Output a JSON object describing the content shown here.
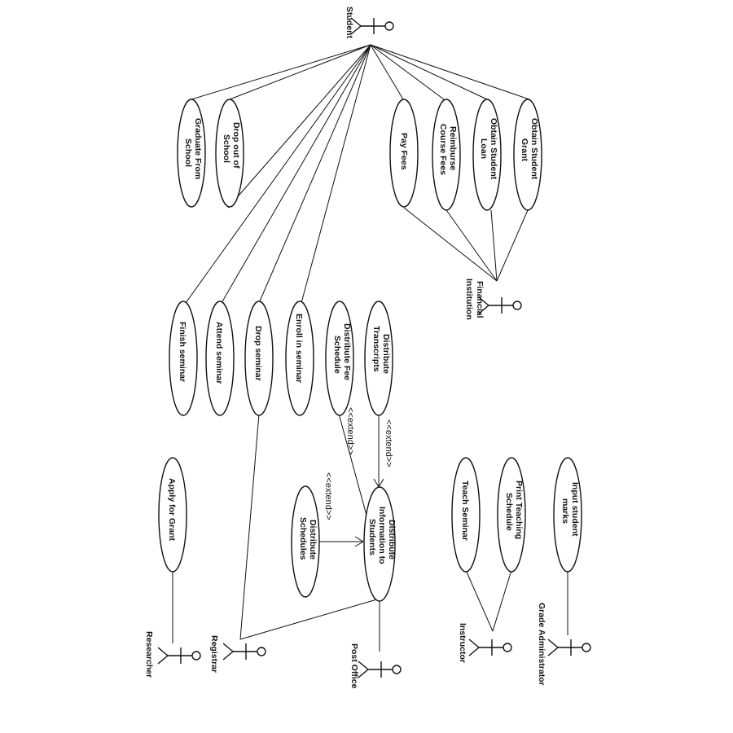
{
  "actors": {
    "student": "Student",
    "financial_institution": [
      "Financial",
      "Institution"
    ],
    "researcher": "Researcher",
    "registrar": "Registrar",
    "post_office": "Post Office",
    "instructor": "Instructor",
    "grade_administrator": "Grade Administrator"
  },
  "use_cases": {
    "graduate": [
      "Graduate From",
      "School"
    ],
    "drop_out": [
      "Drop out of",
      "School"
    ],
    "pay_fees": [
      "Pay Fees"
    ],
    "reimburse": [
      "Reimburse",
      "Course Fees"
    ],
    "obtain_loan": [
      "Obtain Student",
      "Loan"
    ],
    "obtain_grant": [
      "Obtain Student",
      "Grant"
    ],
    "finish_seminar": [
      "Finish seminar"
    ],
    "attend_seminar": [
      "Attend seminar"
    ],
    "drop_seminar": [
      "Drop seminar"
    ],
    "enroll_seminar": [
      "Enroll in seminar"
    ],
    "distribute_fee_schedule": [
      "Distribute Fee",
      "Schedule"
    ],
    "distribute_transcripts": [
      "Distribute",
      "Transcripts"
    ],
    "apply_grant": [
      "Apply for Grant"
    ],
    "distribute_schedules": [
      "Distribute",
      "Schedules"
    ],
    "distribute_info": [
      "Distribute",
      "Information to",
      "Students"
    ],
    "teach_seminar": [
      "Teach Seminar"
    ],
    "print_teaching_schedule": [
      "Print Teaching",
      "Schedule"
    ],
    "input_marks": [
      "Input student",
      "marks"
    ]
  },
  "stereotypes": {
    "extend_1": "<<extend>>",
    "extend_2": "<<extend>>",
    "extend_3": "<<extend>>"
  }
}
